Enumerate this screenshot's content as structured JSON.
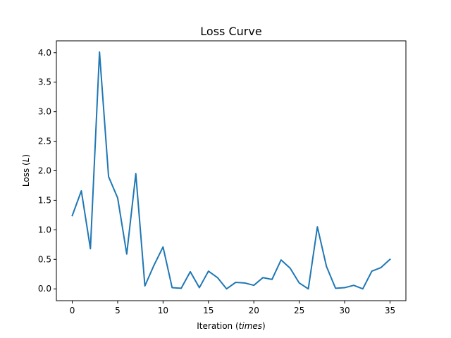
{
  "chart_data": {
    "type": "line",
    "title": "Loss Curve",
    "xlabel_prefix": "Iteration (",
    "xlabel_var": "times",
    "xlabel_suffix": ")",
    "ylabel_prefix": "Loss (",
    "ylabel_var": "L",
    "ylabel_suffix": ")",
    "xlim": [
      -1.75,
      36.75
    ],
    "ylim": [
      -0.2,
      4.2
    ],
    "xticks": [
      0,
      5,
      10,
      15,
      20,
      25,
      30,
      35
    ],
    "xtick_labels": [
      "0",
      "5",
      "10",
      "15",
      "20",
      "25",
      "30",
      "35"
    ],
    "yticks": [
      0.0,
      0.5,
      1.0,
      1.5,
      2.0,
      2.5,
      3.0,
      3.5,
      4.0
    ],
    "ytick_labels": [
      "0.0",
      "0.5",
      "1.0",
      "1.5",
      "2.0",
      "2.5",
      "3.0",
      "3.5",
      "4.0"
    ],
    "grid": false,
    "series": [
      {
        "name": "loss",
        "color": "#1f77b4",
        "x": [
          0,
          1,
          2,
          3,
          4,
          5,
          6,
          7,
          8,
          9,
          10,
          11,
          12,
          13,
          14,
          15,
          16,
          17,
          18,
          19,
          20,
          21,
          22,
          23,
          24,
          25,
          26,
          27,
          28,
          29,
          30,
          31,
          32,
          33,
          34,
          35
        ],
        "values": [
          1.24,
          1.66,
          0.68,
          4.01,
          1.9,
          1.54,
          0.59,
          1.95,
          0.05,
          0.4,
          0.71,
          0.02,
          0.01,
          0.29,
          0.02,
          0.3,
          0.19,
          0.0,
          0.11,
          0.1,
          0.06,
          0.19,
          0.16,
          0.49,
          0.35,
          0.1,
          0.0,
          1.05,
          0.38,
          0.01,
          0.02,
          0.06,
          0.0,
          0.3,
          0.36,
          0.5
        ]
      }
    ]
  }
}
